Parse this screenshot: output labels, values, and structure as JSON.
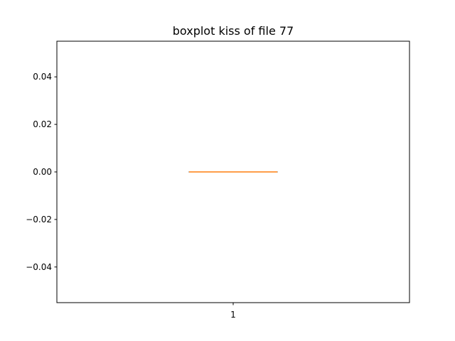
{
  "chart_data": {
    "type": "boxplot",
    "title": "boxplot kiss of file 77",
    "xlabel": "",
    "ylabel": "",
    "ylim": [
      -0.055,
      0.055
    ],
    "yticks": [
      -0.04,
      -0.02,
      0.0,
      0.02,
      0.04
    ],
    "ytick_labels": [
      "−0.04",
      "−0.02",
      "0.00",
      "0.02",
      "0.04"
    ],
    "categories": [
      "1"
    ],
    "boxes": [
      {
        "category": "1",
        "min": 0,
        "q1": 0,
        "median": 0,
        "q3": 0,
        "max": 0
      }
    ],
    "grid": false,
    "colors": {
      "median": "#ff7f0e",
      "box": "#000000",
      "axes": "#000000"
    }
  }
}
